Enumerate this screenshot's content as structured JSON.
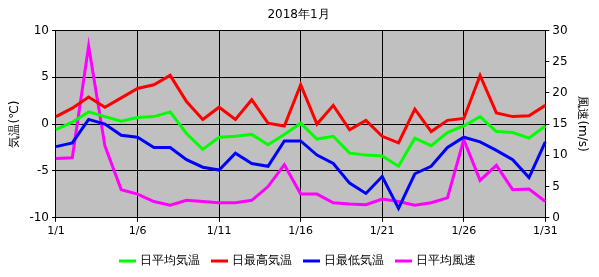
{
  "chart_data": {
    "type": "line",
    "title": "2018年1月",
    "ylabel": "気温(℃)",
    "y2label": "風速(m/s)",
    "categories": [
      "1/1",
      null,
      null,
      null,
      null,
      "1/6",
      null,
      null,
      null,
      null,
      "1/11",
      null,
      null,
      null,
      null,
      "1/16",
      null,
      null,
      null,
      null,
      "1/21",
      null,
      null,
      null,
      null,
      "1/26",
      null,
      null,
      null,
      null,
      "1/31"
    ],
    "series": [
      {
        "name": "日平均気温",
        "color": "#00ff00",
        "values": [
          -0.6,
          0.2,
          1.3,
          0.8,
          0.3,
          0.7,
          0.8,
          1.3,
          -1.0,
          -2.7,
          -1.4,
          -1.3,
          -1.1,
          -2.2,
          -1.1,
          0.1,
          -1.6,
          -1.3,
          -3.1,
          -3.3,
          -3.4,
          -4.5,
          -1.5,
          -2.3,
          -0.9,
          -0.2,
          0.8,
          -0.8,
          -0.9,
          -1.5,
          -0.2
        ]
      },
      {
        "name": "日最高気温",
        "color": "#ff0000",
        "values": [
          0.8,
          1.7,
          2.9,
          1.8,
          2.8,
          3.8,
          4.2,
          5.2,
          2.4,
          0.5,
          1.8,
          0.5,
          2.6,
          0.1,
          -0.2,
          4.2,
          0.0,
          2.0,
          -0.6,
          0.4,
          -1.3,
          -2.0,
          1.6,
          -0.8,
          0.4,
          0.6,
          5.2,
          1.2,
          0.8,
          0.9,
          2.0
        ]
      },
      {
        "name": "日最低気温",
        "color": "#0000ff",
        "values": [
          -2.4,
          -2.0,
          0.5,
          0.0,
          -1.2,
          -1.4,
          -2.5,
          -2.5,
          -3.8,
          -4.6,
          -4.9,
          -3.1,
          -4.2,
          -4.5,
          -1.8,
          -1.8,
          -3.3,
          -4.2,
          -6.3,
          -7.4,
          -5.6,
          -9.0,
          -5.3,
          -4.5,
          -2.5,
          -1.4,
          -1.9,
          -2.8,
          -3.8,
          -5.7,
          -1.9
        ]
      },
      {
        "name": "日平均風速",
        "color": "#ff00ff",
        "axis": "y2",
        "values": [
          9.5,
          9.6,
          27.5,
          11.5,
          4.5,
          3.8,
          2.6,
          2.0,
          2.8,
          2.6,
          2.4,
          2.4,
          2.8,
          5.0,
          8.5,
          3.8,
          3.8,
          2.4,
          2.2,
          2.1,
          3.0,
          2.6,
          2.0,
          2.4,
          3.2,
          12.5,
          6.0,
          8.4,
          4.5,
          4.6,
          2.6
        ]
      }
    ],
    "ylim": [
      -10,
      10
    ],
    "yticks": [
      -10,
      -5,
      0,
      5,
      10
    ],
    "y2lim": [
      0,
      30
    ],
    "y2ticks": [
      0,
      5,
      10,
      15,
      20,
      25,
      30
    ],
    "grid": true,
    "legend": "bottom"
  }
}
